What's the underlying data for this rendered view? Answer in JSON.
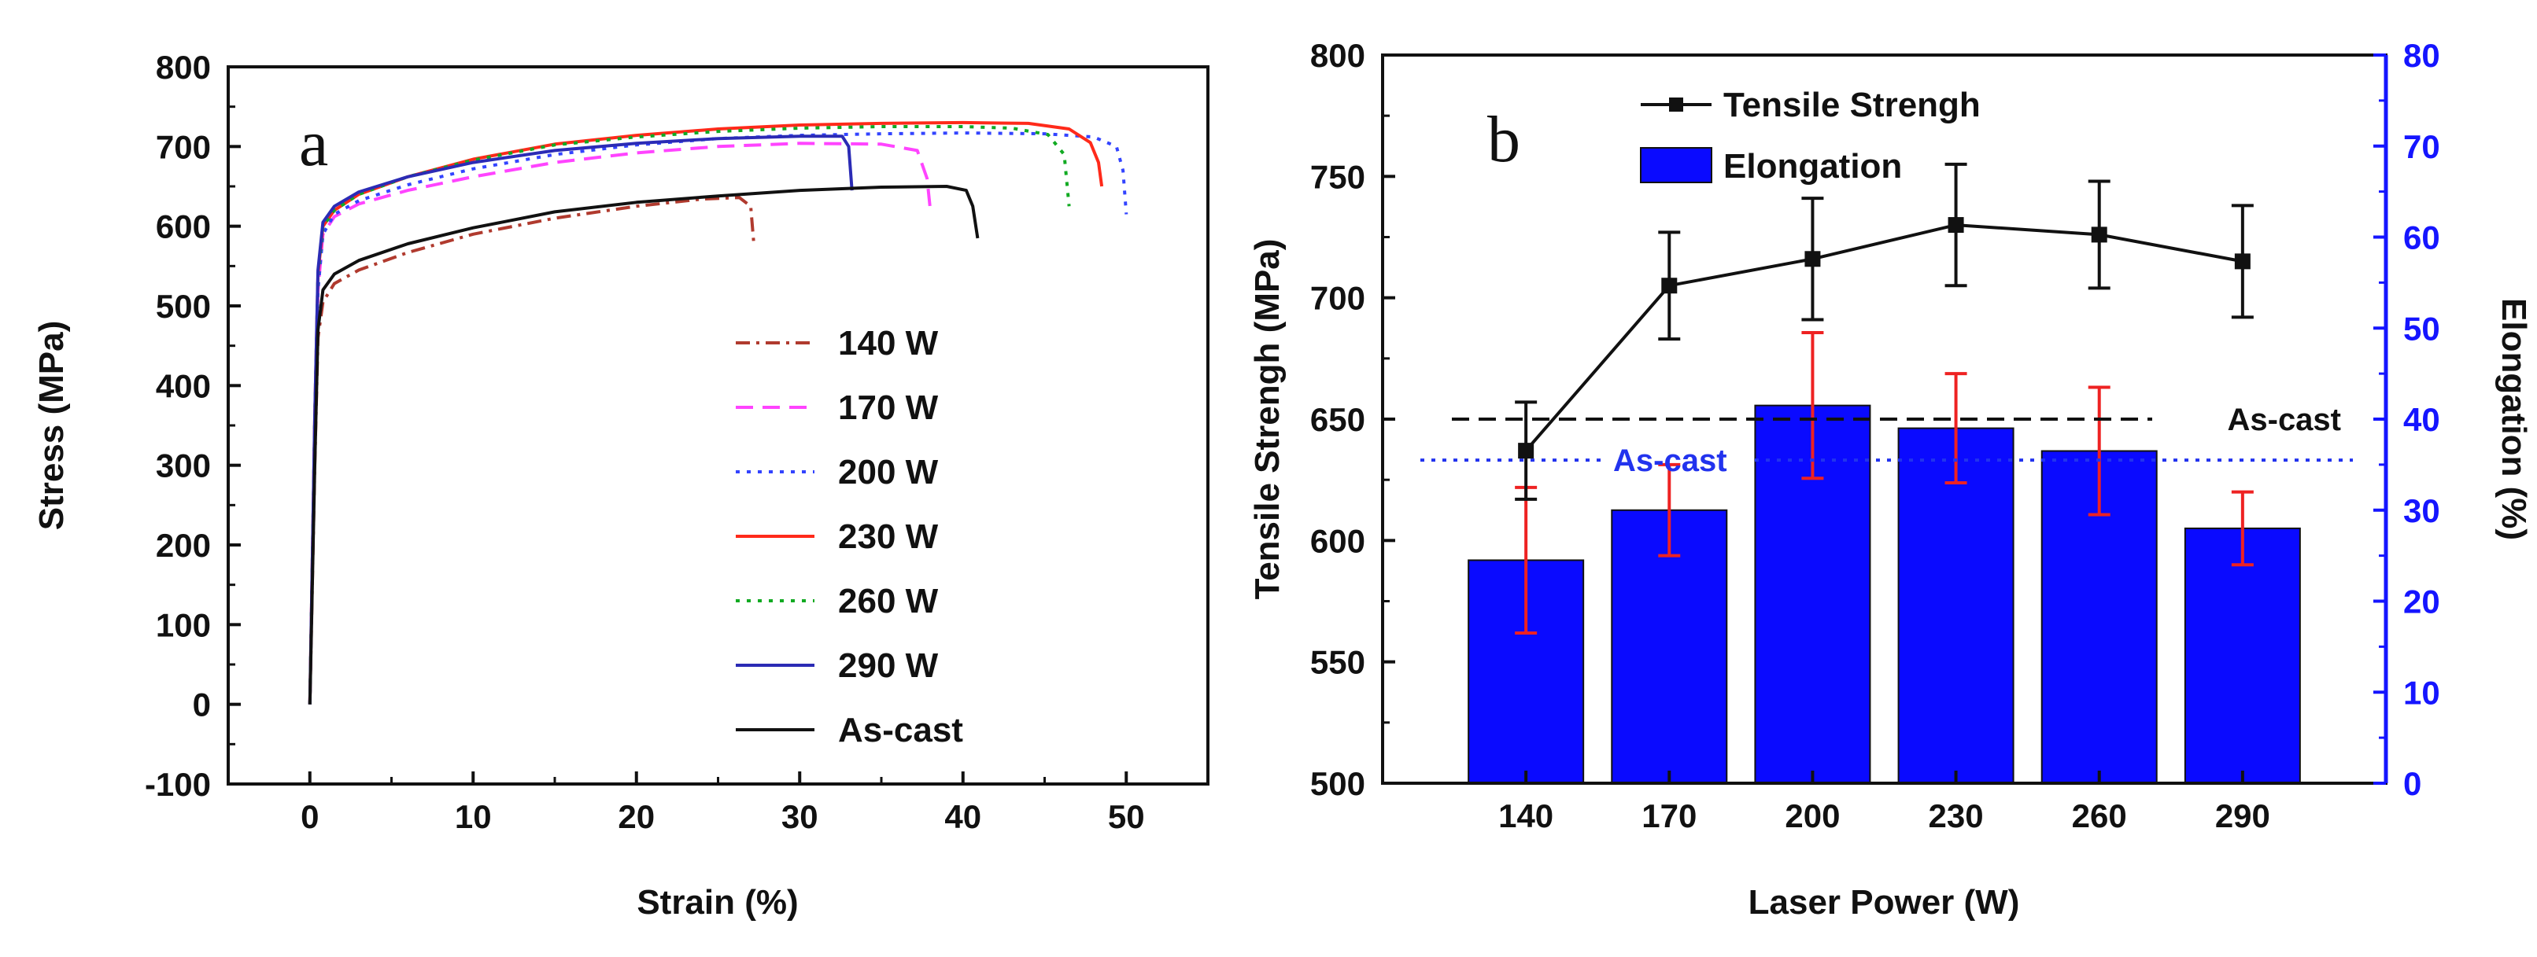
{
  "chart_data": [
    {
      "type": "line",
      "panel": "a",
      "xlabel": "Strain (%)",
      "ylabel": "Stress (MPa)",
      "xlim": [
        -5,
        55
      ],
      "ylim": [
        -100,
        800
      ],
      "xticks": [
        0,
        10,
        20,
        30,
        40,
        50
      ],
      "yticks": [
        -100,
        0,
        100,
        200,
        300,
        400,
        500,
        600,
        700,
        800
      ],
      "legend_position": "right-middle",
      "series": [
        {
          "name": "140 W",
          "color": "#b03a2e",
          "dash": "dashdot",
          "points": [
            [
              0,
              0
            ],
            [
              0.3,
              300
            ],
            [
              0.5,
              460
            ],
            [
              0.8,
              505
            ],
            [
              1.5,
              528
            ],
            [
              3,
              545
            ],
            [
              6,
              567
            ],
            [
              10,
              590
            ],
            [
              15,
              610
            ],
            [
              20,
              625
            ],
            [
              24,
              634
            ],
            [
              26.3,
              636
            ],
            [
              27,
              625
            ],
            [
              27.2,
              575
            ]
          ]
        },
        {
          "name": "170 W",
          "color": "#ff44ff",
          "dash": "dash",
          "points": [
            [
              0,
              0
            ],
            [
              0.3,
              350
            ],
            [
              0.5,
              520
            ],
            [
              0.8,
              590
            ],
            [
              1.5,
              612
            ],
            [
              3,
              628
            ],
            [
              6,
              645
            ],
            [
              10,
              662
            ],
            [
              15,
              680
            ],
            [
              20,
              692
            ],
            [
              25,
              700
            ],
            [
              30,
              704
            ],
            [
              35,
              703
            ],
            [
              37.2,
              695
            ],
            [
              37.8,
              660
            ],
            [
              38,
              620
            ]
          ]
        },
        {
          "name": "200 W",
          "color": "#3344ff",
          "dash": "dot",
          "points": [
            [
              0,
              0
            ],
            [
              0.3,
              350
            ],
            [
              0.5,
              520
            ],
            [
              0.8,
              590
            ],
            [
              1.5,
              615
            ],
            [
              3,
              632
            ],
            [
              6,
              652
            ],
            [
              10,
              672
            ],
            [
              15,
              690
            ],
            [
              20,
              702
            ],
            [
              25,
              710
            ],
            [
              30,
              714
            ],
            [
              35,
              716
            ],
            [
              40,
              717
            ],
            [
              45,
              716
            ],
            [
              48,
              712
            ],
            [
              49.4,
              700
            ],
            [
              49.8,
              670
            ],
            [
              50,
              615
            ]
          ]
        },
        {
          "name": "230 W",
          "color": "#ff2a1a",
          "dash": "solid",
          "points": [
            [
              0,
              0
            ],
            [
              0.3,
              360
            ],
            [
              0.5,
              540
            ],
            [
              0.8,
              600
            ],
            [
              1.5,
              620
            ],
            [
              3,
              640
            ],
            [
              6,
              662
            ],
            [
              10,
              684
            ],
            [
              15,
              703
            ],
            [
              20,
              714
            ],
            [
              25,
              722
            ],
            [
              30,
              727
            ],
            [
              35,
              729
            ],
            [
              40,
              730
            ],
            [
              44,
              729
            ],
            [
              46.5,
              722
            ],
            [
              47.8,
              705
            ],
            [
              48.3,
              680
            ],
            [
              48.5,
              650
            ]
          ]
        },
        {
          "name": "260 W",
          "color": "#11aa22",
          "dash": "dot",
          "points": [
            [
              0,
              0
            ],
            [
              0.3,
              360
            ],
            [
              0.5,
              540
            ],
            [
              0.8,
              600
            ],
            [
              1.5,
              620
            ],
            [
              3,
              640
            ],
            [
              6,
              662
            ],
            [
              10,
              683
            ],
            [
              15,
              702
            ],
            [
              20,
              712
            ],
            [
              25,
              719
            ],
            [
              30,
              723
            ],
            [
              35,
              725
            ],
            [
              40,
              725
            ],
            [
              43,
              723
            ],
            [
              45.2,
              715
            ],
            [
              46.2,
              690
            ],
            [
              46.5,
              625
            ]
          ]
        },
        {
          "name": "290 W",
          "color": "#2b2bb5",
          "dash": "solid",
          "points": [
            [
              0,
              0
            ],
            [
              0.3,
              360
            ],
            [
              0.5,
              545
            ],
            [
              0.8,
              605
            ],
            [
              1.5,
              625
            ],
            [
              3,
              643
            ],
            [
              6,
              662
            ],
            [
              10,
              680
            ],
            [
              15,
              695
            ],
            [
              20,
              704
            ],
            [
              25,
              710
            ],
            [
              30,
              713
            ],
            [
              32.6,
              713
            ],
            [
              33,
              700
            ],
            [
              33.2,
              645
            ]
          ]
        },
        {
          "name": "As-cast",
          "color": "#111111",
          "dash": "solid",
          "points": [
            [
              0,
              0
            ],
            [
              0.3,
              300
            ],
            [
              0.5,
              470
            ],
            [
              0.8,
              520
            ],
            [
              1.5,
              540
            ],
            [
              3,
              557
            ],
            [
              6,
              578
            ],
            [
              10,
              598
            ],
            [
              15,
              618
            ],
            [
              20,
              630
            ],
            [
              25,
              638
            ],
            [
              30,
              645
            ],
            [
              35,
              649
            ],
            [
              39,
              650
            ],
            [
              40.2,
              645
            ],
            [
              40.6,
              625
            ],
            [
              40.9,
              585
            ]
          ]
        }
      ],
      "annotations": [
        {
          "text": "a"
        }
      ]
    },
    {
      "type": "bar+line",
      "panel": "b",
      "xlabel": "Laser Power (W)",
      "ylabel": "Tensile Strengh (MPa)",
      "y2label": "Elongation (%)",
      "categories": [
        "140",
        "170",
        "200",
        "230",
        "260",
        "290"
      ],
      "ylim": [
        500,
        800
      ],
      "y2lim": [
        0,
        80
      ],
      "yticks": [
        500,
        550,
        600,
        650,
        700,
        750,
        800
      ],
      "y2ticks": [
        0,
        10,
        20,
        30,
        40,
        50,
        60,
        70,
        80
      ],
      "legend_position": "top-left",
      "series": [
        {
          "name": "Tensile Strengh",
          "type": "line",
          "axis": "left",
          "color": "#111111",
          "values": [
            637,
            705,
            716,
            730,
            726,
            715
          ],
          "errors": [
            20,
            22,
            25,
            25,
            22,
            23
          ]
        },
        {
          "name": "Elongation",
          "type": "bar",
          "axis": "right",
          "color": "#0a0aff",
          "error_color": "#ee2222",
          "values": [
            24.5,
            30,
            41.5,
            39,
            36.5,
            28
          ],
          "errors": [
            8,
            5,
            8,
            6,
            7,
            4
          ]
        }
      ],
      "reference_lines": [
        {
          "label": "As-cast",
          "axis": "left",
          "value": 650,
          "color": "#111111",
          "dash": "dash"
        },
        {
          "label": "As-cast",
          "axis": "right",
          "value": 35.5,
          "color": "#2233ee",
          "dash": "dot"
        }
      ],
      "annotations": [
        {
          "text": "b"
        }
      ]
    }
  ]
}
